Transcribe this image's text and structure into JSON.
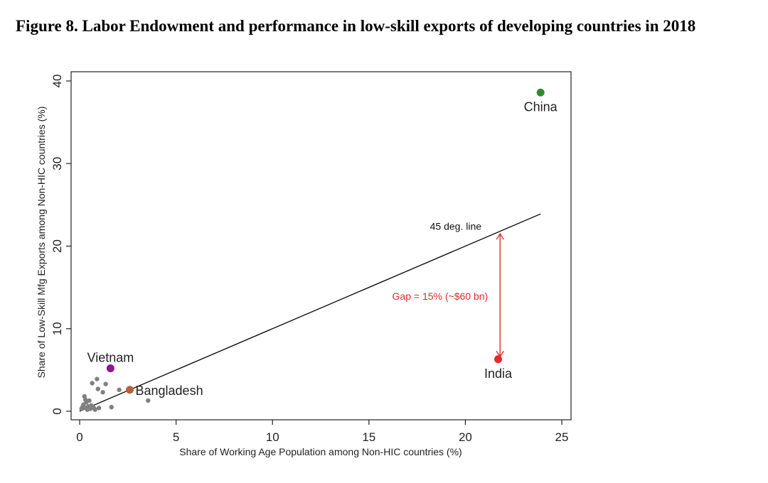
{
  "title": "Figure 8. Labor Endowment and performance in low-skill exports of developing countries in 2018",
  "chart_data": {
    "type": "scatter",
    "xlabel": "Share of Working Age Population among Non-HIC countries (%)",
    "ylabel": "Share of Low-Skill Mfg Exports among Non-HIC countries (%)",
    "xlim": [
      0,
      25
    ],
    "ylim": [
      0,
      40
    ],
    "xticks": [
      0,
      5,
      10,
      15,
      20,
      25
    ],
    "yticks": [
      0,
      10,
      20,
      30,
      40
    ],
    "grid": false,
    "highlighted": [
      {
        "label": "China",
        "x": 23.9,
        "y": 38.6,
        "color": "#2e8b2e"
      },
      {
        "label": "India",
        "x": 21.7,
        "y": 6.3,
        "color": "#e8282b"
      },
      {
        "label": "Vietnam",
        "x": 1.6,
        "y": 5.2,
        "color": "#8b1a8b"
      },
      {
        "label": "Bangladesh",
        "x": 2.6,
        "y": 2.6,
        "color": "#b5623a"
      }
    ],
    "others": {
      "color": "#808080",
      "points": [
        [
          0.1,
          0.3
        ],
        [
          0.15,
          0.5
        ],
        [
          0.2,
          0.8
        ],
        [
          0.25,
          1.8
        ],
        [
          0.3,
          0.4
        ],
        [
          0.35,
          1.1
        ],
        [
          0.4,
          0.2
        ],
        [
          0.45,
          0.6
        ],
        [
          0.5,
          1.3
        ],
        [
          0.55,
          0.3
        ],
        [
          0.6,
          0.7
        ],
        [
          0.65,
          3.4
        ],
        [
          0.7,
          0.5
        ],
        [
          0.8,
          0.2
        ],
        [
          0.9,
          3.9
        ],
        [
          0.95,
          2.7
        ],
        [
          1.0,
          0.4
        ],
        [
          1.2,
          2.3
        ],
        [
          1.35,
          3.3
        ],
        [
          1.65,
          0.5
        ],
        [
          2.05,
          2.6
        ],
        [
          3.55,
          1.3
        ],
        [
          0.3,
          1.4
        ],
        [
          0.75,
          0.35
        ]
      ]
    },
    "line": {
      "label": "45 deg. line",
      "x1": 0,
      "y1": 0,
      "x2": 23.9,
      "y2": 23.9,
      "color": "#000000"
    },
    "gap": {
      "label": "Gap = 15% (~$60 bn)",
      "x": 21.8,
      "y_from": 6.6,
      "y_to": 21.5,
      "color": "#e8282b"
    }
  }
}
